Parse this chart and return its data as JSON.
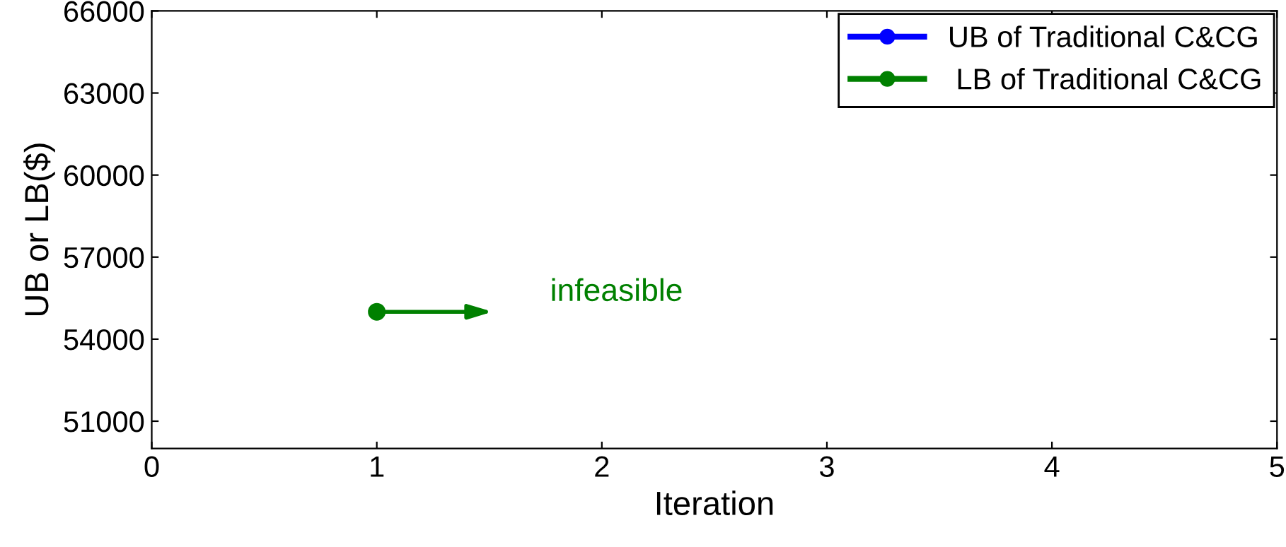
{
  "chart_data": {
    "type": "line",
    "xlabel": "Iteration",
    "ylabel": "UB or LB($)",
    "x": [
      1
    ],
    "series": [
      {
        "name": "UB of Traditional C&CG",
        "color": "#0000ff",
        "values": [
          null
        ]
      },
      {
        "name": " LB of Traditional C&CG",
        "color": "#008000",
        "values": [
          55000
        ]
      }
    ],
    "annotations": [
      "infeasible"
    ],
    "xlim": [
      0,
      5
    ],
    "xticks": [
      0,
      1,
      2,
      3,
      4,
      5
    ],
    "ylim": [
      50000,
      66000
    ],
    "yticks": [
      51000,
      54000,
      57000,
      60000,
      63000,
      66000
    ],
    "grid": false,
    "legend": "top right",
    "marker": "circle",
    "line_style": "solid"
  }
}
